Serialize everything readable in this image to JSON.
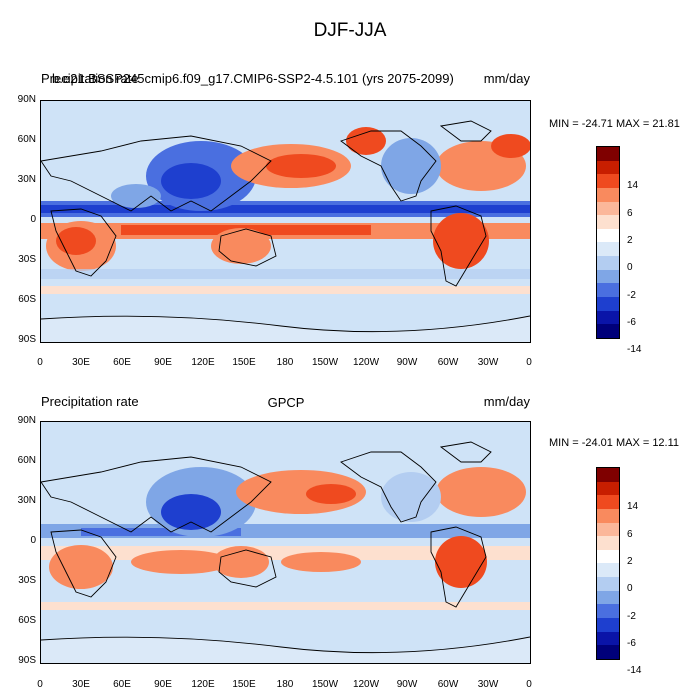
{
  "main_title": "DJF-JJA",
  "panels": [
    {
      "left_title": "Precipitation rate",
      "overlay_title": "b.e21.BSSP245cmip6.f09_g17.CMIP6-SSP2-4.5.101 (yrs 2075-2099)",
      "center_title": "",
      "right_title": "mm/day",
      "minmax": "MIN = -24.71 MAX =  21.81"
    },
    {
      "left_title": "Precipitation rate",
      "overlay_title": "",
      "center_title": "GPCP",
      "right_title": "mm/day",
      "minmax": "MIN = -24.01 MAX =  12.11"
    }
  ],
  "lat_labels": [
    "90N",
    "60N",
    "30N",
    "0",
    "30S",
    "60S",
    "90S"
  ],
  "lon_labels": [
    "0",
    "30E",
    "60E",
    "90E",
    "120E",
    "150E",
    "180",
    "150W",
    "120W",
    "90W",
    "60W",
    "30W",
    "0"
  ],
  "colorbar": {
    "labels": [
      "14",
      "6",
      "2",
      "0",
      "-2",
      "-6",
      "-14"
    ],
    "colors": [
      "#7f0000",
      "#c81e00",
      "#ef4a1f",
      "#f98a5e",
      "#fbb79a",
      "#fde0cf",
      "#ffffff",
      "#dbe9f8",
      "#b3cdf1",
      "#7fa6e6",
      "#4a6fe0",
      "#1e3fcf",
      "#0a14a8",
      "#00007a"
    ]
  },
  "colors": {
    "ocean_base": "#cfe3f7",
    "wet_strong": "#ef4a1f",
    "wet_mid": "#f98a5e",
    "wet_light": "#fde0cf",
    "dry_light": "#b3cdf1",
    "dry_mid": "#4a6fe0",
    "dry_strong": "#1e3fcf"
  }
}
